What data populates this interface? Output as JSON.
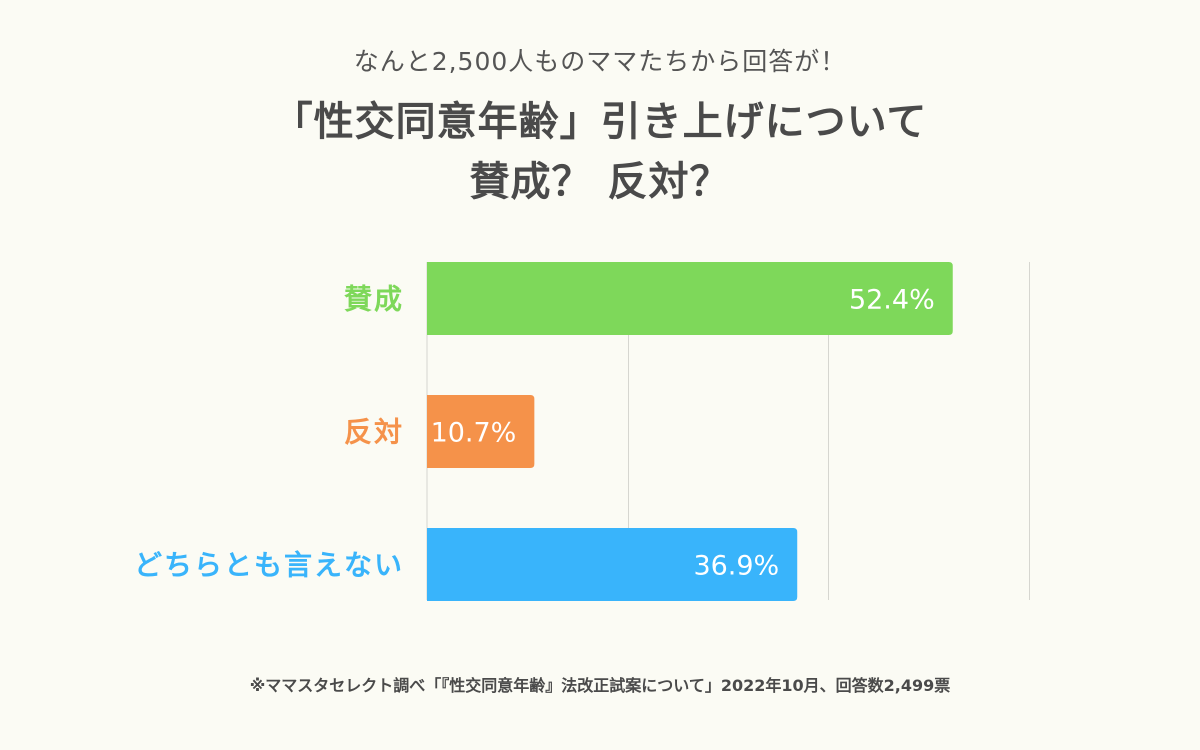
{
  "header": {
    "subtitle": "なんと2,500人ものママたちから回答が！",
    "title_line1": "「性交同意年齢」引き上げについて",
    "title_line2": "賛成？ 反対？"
  },
  "chart_data": {
    "type": "bar",
    "orientation": "horizontal",
    "categories": [
      "賛成",
      "反対",
      "どちらとも言えない"
    ],
    "values": [
      52.4,
      10.7,
      36.9
    ],
    "value_labels": [
      "52.4%",
      "10.7%",
      "36.9%"
    ],
    "colors": [
      "#7ed85a",
      "#f5924a",
      "#39b4fb"
    ],
    "xlim": [
      0,
      60
    ],
    "gridlines": [
      20,
      40,
      60
    ],
    "unit": "%"
  },
  "footnote": "※ママスタセレクト調べ「『性交同意年齢』法改正試案について」2022年10月、回答数2,499票"
}
